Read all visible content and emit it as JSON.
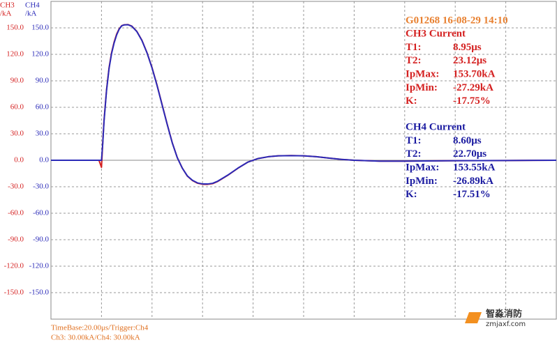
{
  "chart_data": {
    "type": "line",
    "x": [
      -20,
      -1,
      0,
      0.5,
      1,
      2,
      3,
      4,
      5,
      6,
      7,
      8,
      9,
      10.5,
      12,
      14,
      16,
      18,
      20,
      22,
      24,
      26,
      28,
      30,
      32,
      34,
      36,
      38,
      40,
      42,
      44,
      46,
      50,
      54,
      58,
      62,
      66,
      70,
      75,
      80,
      85,
      90,
      95,
      100,
      110,
      120,
      140,
      160,
      180
    ],
    "xlim": [
      -20,
      180
    ],
    "series": [
      {
        "name": "CH3",
        "color": "#d42020",
        "values": [
          0,
          0,
          -8,
          20,
          45,
          80,
          105,
          122,
          134,
          143,
          149,
          152.5,
          153.5,
          153.7,
          152,
          146,
          136,
          122,
          105,
          85,
          63,
          41,
          20,
          3,
          -9,
          -18,
          -23,
          -26,
          -27.2,
          -27.29,
          -26.5,
          -24,
          -17,
          -9,
          -2,
          2,
          4,
          5,
          5.3,
          5,
          4,
          2.5,
          1,
          0,
          -1,
          -1,
          -0.5,
          -0.3,
          0
        ]
      },
      {
        "name": "CH4",
        "color": "#2a2ab8",
        "axis": "y2",
        "values": [
          0,
          0,
          0,
          19,
          44,
          79,
          104,
          121,
          133,
          142,
          148.5,
          152.3,
          153.4,
          153.55,
          151.8,
          145.8,
          135.7,
          121.8,
          104.7,
          84.6,
          62.6,
          40.7,
          19.8,
          2.9,
          -9,
          -17.8,
          -22.7,
          -25.7,
          -26.8,
          -26.89,
          -26.1,
          -23.7,
          -16.8,
          -8.9,
          -2,
          2,
          4,
          5,
          5.2,
          5,
          4,
          2.5,
          1,
          0,
          -1,
          -1,
          -0.5,
          -0.3,
          0
        ]
      }
    ],
    "yunit": "/kA",
    "y2unit": "/kA",
    "ylim": [
      -180,
      180
    ],
    "yticks": [
      {
        "value": 150,
        "label": "150.0"
      },
      {
        "value": 120,
        "label": "120.0"
      },
      {
        "value": 90,
        "label": "90.0"
      },
      {
        "value": 60,
        "label": "60.0"
      },
      {
        "value": 30,
        "label": "30.0"
      },
      {
        "value": 0,
        "label": "0.0"
      },
      {
        "value": -30,
        "label": "-30.0"
      },
      {
        "value": -60,
        "label": "-60.0"
      },
      {
        "value": -90,
        "label": "-90.0"
      },
      {
        "value": -120,
        "label": "-120.0"
      },
      {
        "value": -150,
        "label": "-150.0"
      }
    ],
    "y2lim": [
      -180,
      180
    ],
    "y2ticks": [
      {
        "value": 150,
        "label": "150.0"
      },
      {
        "value": 120,
        "label": "120.0"
      },
      {
        "value": 90,
        "label": "90.0"
      },
      {
        "value": 60,
        "label": "60.0"
      },
      {
        "value": 30,
        "label": "30.0"
      },
      {
        "value": 0,
        "label": "0.0"
      },
      {
        "value": -30,
        "label": "-30.0"
      },
      {
        "value": -60,
        "label": "-60.0"
      },
      {
        "value": -90,
        "label": "-90.0"
      },
      {
        "value": -120,
        "label": "-120.0"
      },
      {
        "value": -150,
        "label": "-150.0"
      }
    ],
    "grid": true
  },
  "panel": {
    "header": "G01268  16-08-29 14:10",
    "groups": [
      {
        "title": "CH3 Current",
        "color": "#d42020",
        "rows": [
          [
            "T1:",
            "8.95μs"
          ],
          [
            "T2:",
            "23.12μs"
          ],
          [
            "IpMax:",
            "153.70kA"
          ],
          [
            "IpMin:",
            "-27.29kA"
          ],
          [
            "K:",
            "-17.75%"
          ]
        ]
      },
      {
        "title": "CH4 Current",
        "color": "#1a1aa0",
        "rows": [
          [
            "T1:",
            "8.60μs"
          ],
          [
            "T2:",
            "22.70μs"
          ],
          [
            "IpMax:",
            "153.55kA"
          ],
          [
            "IpMin:",
            "-26.89kA"
          ],
          [
            "K:",
            "-17.51%"
          ]
        ]
      }
    ]
  },
  "footer": [
    "TimeBase:20.00μs/Trigger:Ch4",
    "Ch3:   30.00kA/Ch4:   30.00kA"
  ],
  "watermark": {
    "name": "智淼消防",
    "site": "zmjaxf.com"
  }
}
